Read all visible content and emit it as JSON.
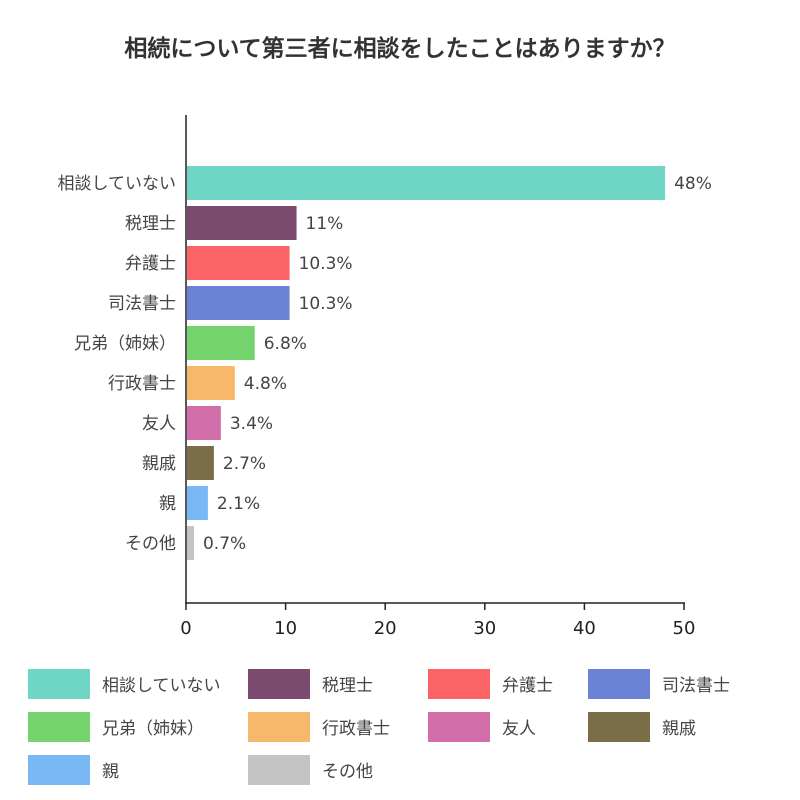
{
  "chart_data": {
    "type": "bar",
    "orientation": "horizontal",
    "title": "相続について第三者に相談をしたことはありますか？",
    "categories": [
      "相談していない",
      "税理士",
      "弁護士",
      "司法書士",
      "兄弟（姉妹）",
      "行政書士",
      "友人",
      "親戚",
      "親",
      "その他"
    ],
    "values": [
      48,
      11,
      10.3,
      10.3,
      6.8,
      4.8,
      3.4,
      2.7,
      2.1,
      0.7
    ],
    "value_labels": [
      "48%",
      "11%",
      "10.3%",
      "10.3%",
      "6.8%",
      "4.8%",
      "3.4%",
      "2.7%",
      "2.1%",
      "0.7%"
    ],
    "colors": [
      "#6fd6c6",
      "#7a4b6e",
      "#fb6466",
      "#6b82d5",
      "#75d36e",
      "#f8b86b",
      "#d26fab",
      "#7a6e49",
      "#7ab8f5",
      "#c4c4c4"
    ],
    "xlim": [
      0,
      50
    ],
    "xticks": [
      "0",
      "10",
      "20",
      "30",
      "40",
      "50"
    ],
    "xtick_values": [
      0,
      10,
      20,
      30,
      40,
      50
    ],
    "grid": false,
    "legend_position": "bottom"
  }
}
